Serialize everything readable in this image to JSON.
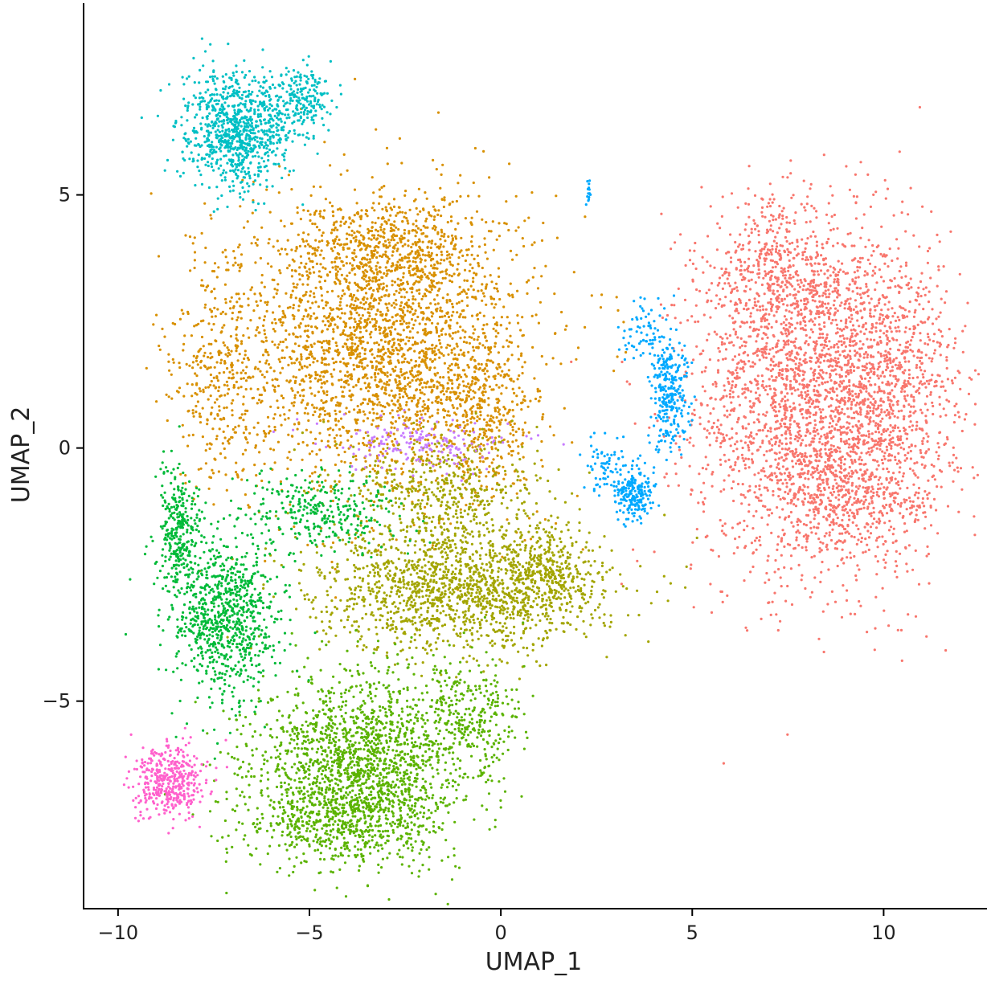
{
  "chart_data": {
    "type": "scatter",
    "title": "",
    "xlabel": "UMAP_1",
    "ylabel": "UMAP_2",
    "xlim": [
      -10.9,
      12.7
    ],
    "ylim": [
      -9.1,
      8.85
    ],
    "x_ticks": [
      -10,
      -5,
      0,
      5,
      10
    ],
    "y_ticks": [
      -5,
      0,
      5
    ],
    "x_tick_labels": [
      "−10",
      "−5",
      "0",
      "5",
      "10"
    ],
    "y_tick_labels": [
      "−5",
      "0",
      "5"
    ],
    "grid": false,
    "legend": "none",
    "series": [
      {
        "color": "#F8766D",
        "clusters": [
          {
            "cx": 8.3,
            "cy": 0.9,
            "sx": 1.6,
            "sy": 1.7,
            "n": 2600
          },
          {
            "cx": 7.2,
            "cy": 3.3,
            "sx": 1.0,
            "sy": 0.8,
            "n": 500
          },
          {
            "cx": 10.3,
            "cy": 1.2,
            "sx": 0.8,
            "sy": 1.4,
            "n": 500
          },
          {
            "cx": 9.0,
            "cy": -1.0,
            "sx": 1.0,
            "sy": 0.5,
            "n": 300
          }
        ]
      },
      {
        "color": "#D89000",
        "clusters": [
          {
            "cx": -3.0,
            "cy": 2.0,
            "sx": 1.9,
            "sy": 1.4,
            "n": 2600
          },
          {
            "cx": -3.0,
            "cy": 4.0,
            "sx": 1.2,
            "sy": 0.5,
            "n": 450
          },
          {
            "cx": -7.3,
            "cy": 1.5,
            "sx": 0.6,
            "sy": 1.2,
            "n": 350
          },
          {
            "cx": -0.3,
            "cy": 0.6,
            "sx": 0.6,
            "sy": 0.8,
            "n": 250
          }
        ]
      },
      {
        "color": "#A3A500",
        "clusters": [
          {
            "cx": -1.0,
            "cy": -2.8,
            "sx": 1.9,
            "sy": 0.6,
            "n": 1500
          },
          {
            "cx": -1.5,
            "cy": -0.9,
            "sx": 1.3,
            "sy": 0.6,
            "n": 500
          },
          {
            "cx": 1.2,
            "cy": -2.5,
            "sx": 0.6,
            "sy": 0.5,
            "n": 250
          }
        ]
      },
      {
        "color": "#5BB300",
        "clusters": [
          {
            "cx": -3.6,
            "cy": -6.3,
            "sx": 1.4,
            "sy": 0.9,
            "n": 1800
          },
          {
            "cx": -4.4,
            "cy": -7.4,
            "sx": 1.2,
            "sy": 0.4,
            "n": 350
          },
          {
            "cx": -0.9,
            "cy": -5.3,
            "sx": 0.7,
            "sy": 0.6,
            "n": 250
          }
        ]
      },
      {
        "color": "#00BA38",
        "clusters": [
          {
            "cx": -7.2,
            "cy": -3.4,
            "sx": 0.7,
            "sy": 0.8,
            "n": 850
          },
          {
            "cx": -8.4,
            "cy": -1.6,
            "sx": 0.3,
            "sy": 0.6,
            "n": 300
          },
          {
            "cx": -4.6,
            "cy": -1.3,
            "sx": 1.0,
            "sy": 0.4,
            "n": 300
          }
        ]
      },
      {
        "color": "#00BFC4",
        "clusters": [
          {
            "cx": -6.9,
            "cy": 6.3,
            "sx": 0.7,
            "sy": 0.55,
            "n": 900
          },
          {
            "cx": -5.2,
            "cy": 6.9,
            "sx": 0.4,
            "sy": 0.3,
            "n": 200
          }
        ]
      },
      {
        "color": "#00A9FF",
        "clusters": [
          {
            "cx": 4.4,
            "cy": 1.1,
            "sx": 0.25,
            "sy": 0.55,
            "n": 280
          },
          {
            "cx": 3.8,
            "cy": 2.3,
            "sx": 0.35,
            "sy": 0.35,
            "n": 70
          },
          {
            "cx": 3.5,
            "cy": -0.9,
            "sx": 0.25,
            "sy": 0.25,
            "n": 200
          },
          {
            "cx": 2.8,
            "cy": -0.4,
            "sx": 0.3,
            "sy": 0.3,
            "n": 70
          },
          {
            "cx": 2.3,
            "cy": 5.1,
            "sx": 0.04,
            "sy": 0.12,
            "n": 15
          }
        ]
      },
      {
        "color": "#C77CFF",
        "clusters": [
          {
            "cx": -2.0,
            "cy": 0.1,
            "sx": 1.3,
            "sy": 0.25,
            "n": 170
          }
        ]
      },
      {
        "color": "#FF61CC",
        "clusters": [
          {
            "cx": -8.7,
            "cy": -6.6,
            "sx": 0.45,
            "sy": 0.35,
            "n": 420
          }
        ]
      }
    ]
  }
}
